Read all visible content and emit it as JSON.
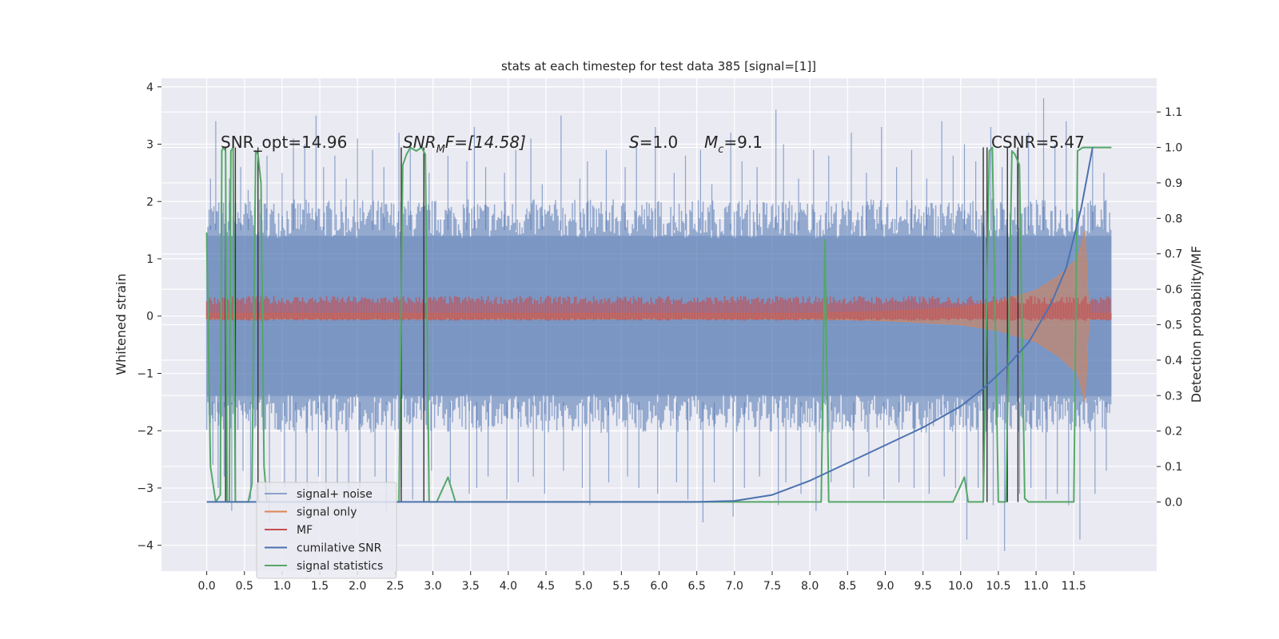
{
  "chart_data": {
    "type": "line",
    "title": "stats at each timestep for test data 385 [signal=[1]]",
    "xlabel": "",
    "ylabel": "Whitened strain",
    "y2label": "Detection probability/MF",
    "xlim": [
      -0.6,
      12.6
    ],
    "ylim": [
      -4.45,
      4.15
    ],
    "y2lim": [
      -0.195,
      1.195
    ],
    "x_ticks": [
      "0.0",
      "0.5",
      "1.0",
      "1.5",
      "2.0",
      "2.5",
      "3.0",
      "3.5",
      "4.0",
      "4.5",
      "5.0",
      "5.5",
      "6.0",
      "6.5",
      "7.0",
      "7.5",
      "8.0",
      "8.5",
      "9.0",
      "9.5",
      "10.0",
      "10.5",
      "11.0",
      "11.5"
    ],
    "y_ticks": [
      "4",
      "3",
      "2",
      "1",
      "0",
      "−1",
      "−2",
      "−3",
      "−4"
    ],
    "y2_ticks": [
      "1.1",
      "1.0",
      "0.9",
      "0.8",
      "0.7",
      "0.6",
      "0.5",
      "0.4",
      "0.3",
      "0.2",
      "0.1",
      "0.0"
    ],
    "grid": true,
    "legend_position": "lower-left",
    "annotations": [
      "SNR_opt=14.96",
      "SNR",
      "M",
      "F=[14.58]",
      "S",
      "=1.0",
      "M",
      "c",
      "=9.1",
      "CSNR=5.47"
    ],
    "series": [
      {
        "name": "signal+ noise",
        "color": "#4c72b0",
        "axis": "left",
        "style": "band",
        "x": [
          0,
          12
        ],
        "envelope_typical": 1.7,
        "x_spikes": [
          0.05,
          0.12,
          0.2,
          0.3,
          0.45,
          0.55,
          0.8,
          1.0,
          1.15,
          1.3,
          1.45,
          1.55,
          1.7,
          1.85,
          2.0,
          2.2,
          2.35,
          2.55,
          2.7,
          2.95,
          3.2,
          3.45,
          3.55,
          3.7,
          3.95,
          4.1,
          4.3,
          4.45,
          4.7,
          4.95,
          5.05,
          5.3,
          5.55,
          5.7,
          5.95,
          6.2,
          6.35,
          6.55,
          6.7,
          6.95,
          7.1,
          7.3,
          7.55,
          7.65,
          7.85,
          8.05,
          8.25,
          8.55,
          8.75,
          8.95,
          9.15,
          9.35,
          9.55,
          9.75,
          9.9,
          10.05,
          10.2,
          10.4,
          10.55,
          10.75,
          10.9,
          11.1,
          11.25,
          11.4,
          11.55,
          11.75,
          11.9
        ],
        "y_spike_up": [
          2.4,
          3.4,
          2.9,
          2.4,
          2.6,
          2.2,
          2.8,
          2.5,
          3.1,
          3.0,
          3.5,
          2.6,
          2.8,
          2.4,
          3.1,
          2.9,
          2.6,
          3.2,
          3.0,
          2.5,
          2.8,
          2.7,
          3.3,
          2.6,
          2.5,
          2.9,
          3.1,
          2.3,
          3.5,
          2.4,
          2.7,
          2.9,
          2.6,
          3.0,
          3.3,
          2.5,
          2.8,
          2.9,
          2.3,
          3.2,
          2.7,
          2.6,
          3.6,
          3.0,
          2.4,
          2.9,
          2.8,
          3.2,
          2.5,
          3.3,
          2.6,
          2.9,
          2.4,
          3.4,
          2.8,
          3.0,
          2.7,
          3.3,
          2.6,
          2.9,
          3.2,
          3.8,
          3.0,
          3.4,
          2.6,
          2.9,
          2.5
        ],
        "y_spike_down": [
          -2.6,
          -3.0,
          -2.8,
          -3.4,
          -2.7,
          -3.2,
          -3.6,
          -3.0,
          -2.9,
          -3.3,
          -2.8,
          -3.1,
          -2.9,
          -3.2,
          -3.0,
          -2.8,
          -3.4,
          -3.0,
          -3.2,
          -2.7,
          -2.9,
          -3.1,
          -3.0,
          -2.8,
          -3.2,
          -2.9,
          -2.8,
          -3.1,
          -2.7,
          -3.0,
          -3.3,
          -2.9,
          -2.8,
          -3.0,
          -3.1,
          -2.9,
          -3.2,
          -3.6,
          -2.9,
          -3.5,
          -3.0,
          -2.8,
          -3.3,
          -2.9,
          -3.1,
          -3.4,
          -2.9,
          -3.0,
          -2.8,
          -3.2,
          -2.9,
          -3.0,
          -3.1,
          -2.8,
          -3.0,
          -3.9,
          -3.0,
          -3.3,
          -4.1,
          -3.1,
          -3.0,
          -3.2,
          -3.1,
          -3.3,
          -3.9,
          -3.1,
          -2.7
        ]
      },
      {
        "name": "signal only",
        "color": "#dd8452",
        "axis": "left",
        "style": "chirp",
        "x": [
          0,
          8.0,
          9.0,
          10.0,
          10.5,
          11.0,
          11.3,
          11.55,
          11.65,
          11.7,
          12.0
        ],
        "amplitude": [
          0.05,
          0.05,
          0.08,
          0.15,
          0.25,
          0.45,
          0.7,
          1.0,
          1.5,
          0.05,
          0.05
        ]
      },
      {
        "name": "MF",
        "color": "#c44e52",
        "axis": "left",
        "style": "band",
        "x": [
          0,
          12
        ],
        "amplitude": [
          0.25,
          0.25
        ]
      },
      {
        "name": "cumilative SNR",
        "color": "#4c72b0",
        "axis": "right",
        "style": "line",
        "x": [
          0,
          0.3,
          6.5,
          7.0,
          7.5,
          8.0,
          8.5,
          9.0,
          9.5,
          10.0,
          10.3,
          10.6,
          10.9,
          11.2,
          11.4,
          11.6,
          11.75
        ],
        "values": [
          0.0,
          0.0,
          0.0,
          0.003,
          0.02,
          0.06,
          0.11,
          0.16,
          0.21,
          0.27,
          0.32,
          0.38,
          0.45,
          0.56,
          0.66,
          0.83,
          1.0
        ]
      },
      {
        "name": "signal statistics",
        "color": "#55a868",
        "axis": "right",
        "style": "line",
        "x": [
          0.0,
          0.05,
          0.12,
          0.18,
          0.2,
          0.22,
          0.25,
          0.27,
          0.3,
          0.32,
          0.35,
          0.38,
          0.42,
          0.55,
          0.6,
          0.65,
          0.68,
          0.72,
          0.76,
          0.8,
          0.85,
          2.55,
          2.6,
          2.65,
          2.7,
          2.78,
          2.85,
          2.9,
          2.95,
          3.05,
          3.2,
          3.3,
          3.35,
          4.3,
          8.15,
          8.2,
          8.25,
          8.3,
          9.0,
          9.5,
          9.8,
          9.9,
          10.05,
          10.1,
          10.15,
          10.3,
          10.38,
          10.42,
          10.5,
          10.6,
          10.68,
          10.72,
          10.78,
          10.85,
          10.9,
          11.0,
          11.5,
          11.55,
          11.62,
          11.68,
          11.75,
          11.85,
          11.95,
          12.0
        ],
        "values": [
          0.76,
          0.1,
          0.0,
          0.02,
          0.99,
          1.0,
          0.99,
          0.0,
          0.0,
          0.99,
          1.0,
          0.0,
          0.0,
          0.0,
          0.05,
          0.99,
          0.98,
          0.9,
          0.1,
          0.0,
          0.0,
          0.0,
          0.95,
          0.98,
          1.0,
          0.99,
          1.0,
          0.98,
          0.0,
          0.0,
          0.07,
          0.0,
          0.0,
          0.0,
          0.0,
          0.74,
          0.0,
          0.0,
          0.0,
          0.0,
          0.0,
          0.0,
          0.07,
          0.0,
          0.0,
          0.0,
          0.99,
          1.0,
          0.0,
          0.0,
          0.99,
          0.98,
          0.95,
          0.01,
          0.0,
          0.0,
          0.0,
          0.99,
          1.0,
          1.0,
          1.0,
          1.0,
          1.0,
          1.0
        ]
      }
    ],
    "vertical_markers_x": [
      0.38,
      0.68,
      0.25,
      2.58,
      2.88,
      10.3,
      10.35,
      10.62,
      10.76
    ]
  }
}
